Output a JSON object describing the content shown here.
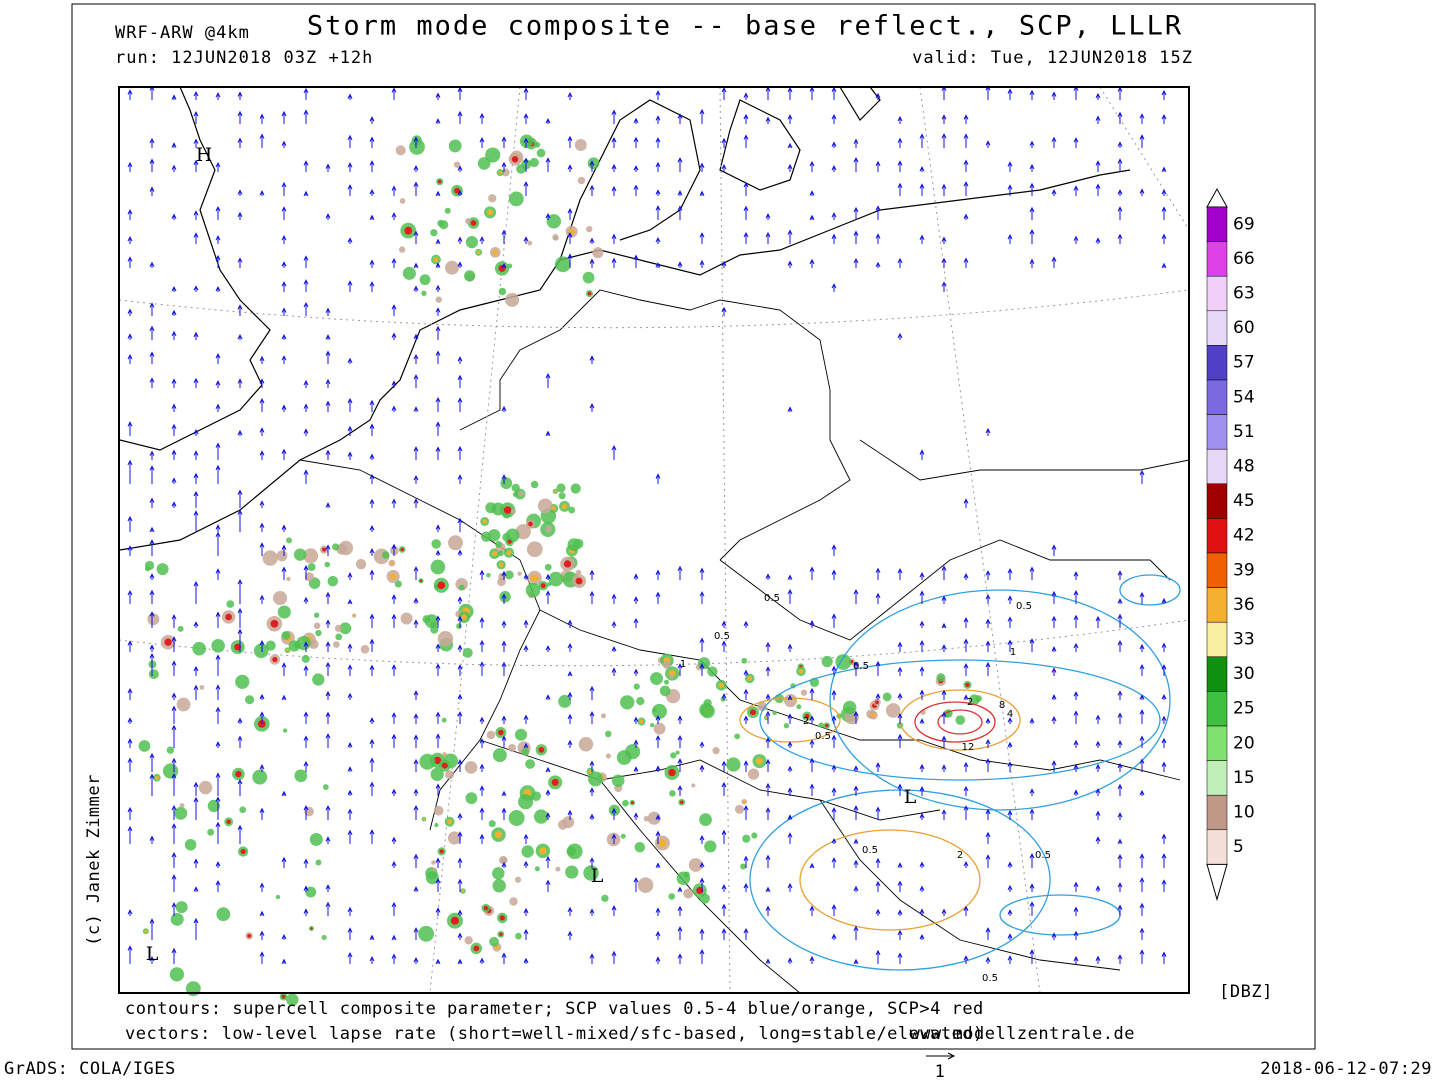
{
  "header": {
    "model": "WRF-ARW @4km",
    "title": "Storm mode composite -- base reflect., SCP, LLLR",
    "run": "run: 12JUN2018 03Z +12h",
    "valid": "valid: Tue, 12JUN2018 15Z"
  },
  "map": {
    "pressure_labels": [
      "H",
      "L",
      "L",
      "L"
    ],
    "contour_labels": [
      "0.5",
      "0.5",
      "0.5",
      "1",
      "1",
      "2",
      "2",
      "4",
      "8",
      "12",
      "0.5",
      "0.5",
      "0.5",
      "0.5",
      "2",
      "0.5"
    ]
  },
  "colorbar": {
    "levels": [
      69,
      66,
      63,
      60,
      57,
      54,
      51,
      48,
      45,
      42,
      39,
      36,
      33,
      30,
      25,
      20,
      15,
      10,
      5
    ],
    "colors": [
      "#a000c8",
      "#e040e8",
      "#f0d0f8",
      "#e8d8f8",
      "#5040c8",
      "#7a6ae0",
      "#a090f0",
      "#e8d8f8",
      "#a00000",
      "#e01010",
      "#f06000",
      "#f4b030",
      "#f8f0a0",
      "#109010",
      "#40c040",
      "#80e070",
      "#c0f0b8",
      "#c09888",
      "#f4e0d8"
    ],
    "unit": "[DBZ]"
  },
  "footer": {
    "contours": "contours: supercell composite parameter; SCP values 0.5-4 blue/orange, SCP>4 red",
    "vectors": "vectors: low-level lapse rate (short=well-mixed/sfc-based, long=stable/elevated)",
    "site": "www.modellzentrale.de",
    "credit": "(c) Janek Zimmer",
    "grads": "GrADS: COLA/IGES",
    "timestamp": "2018-06-12-07:29",
    "vector_scale": "1"
  }
}
